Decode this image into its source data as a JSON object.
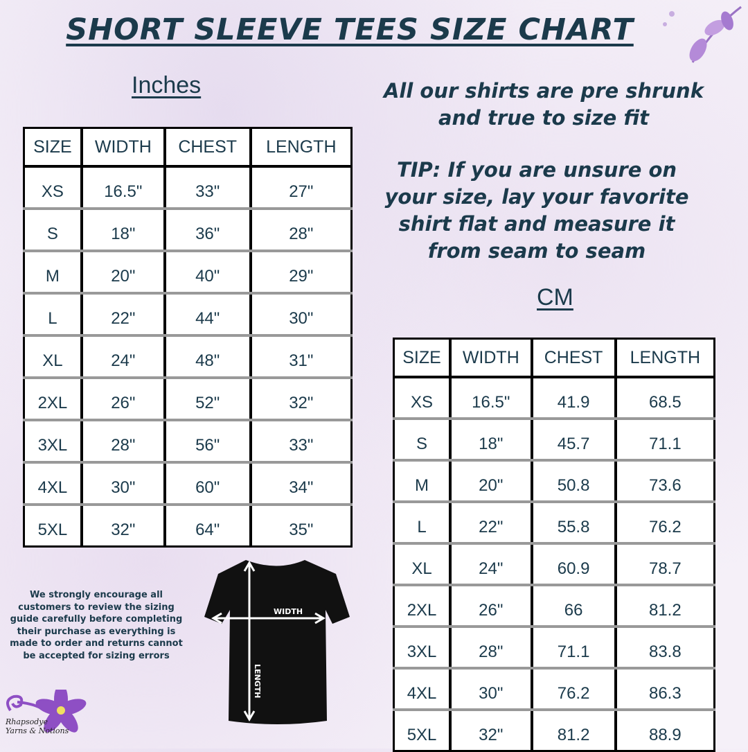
{
  "title": "SHORT SLEEVE TEES SIZE CHART",
  "inches": {
    "label": "Inches",
    "headers": [
      "SIZE",
      "WIDTH",
      "CHEST",
      "LENGTH"
    ],
    "rows": [
      [
        "XS",
        "16.5\"",
        "33\"",
        "27\""
      ],
      [
        "S",
        "18\"",
        "36\"",
        "28\""
      ],
      [
        "M",
        "20\"",
        "40\"",
        "29\""
      ],
      [
        "L",
        "22\"",
        "44\"",
        "30\""
      ],
      [
        "XL",
        "24\"",
        "48\"",
        "31\""
      ],
      [
        "2XL",
        "26\"",
        "52\"",
        "32\""
      ],
      [
        "3XL",
        "28\"",
        "56\"",
        "33\""
      ],
      [
        "4XL",
        "30\"",
        "60\"",
        "34\""
      ],
      [
        "5XL",
        "32\"",
        "64\"",
        "35\""
      ]
    ]
  },
  "cm": {
    "label": "CM",
    "headers": [
      "SIZE",
      "WIDTH",
      "CHEST",
      "LENGTH"
    ],
    "rows": [
      [
        "XS",
        "16.5\"",
        "41.9",
        "68.5"
      ],
      [
        "S",
        "18\"",
        "45.7",
        "71.1"
      ],
      [
        "M",
        "20\"",
        "50.8",
        "73.6"
      ],
      [
        "L",
        "22\"",
        "55.8",
        "76.2"
      ],
      [
        "XL",
        "24\"",
        "60.9",
        "78.7"
      ],
      [
        "2XL",
        "26\"",
        "66",
        "81.2"
      ],
      [
        "3XL",
        "28\"",
        "71.1",
        "83.8"
      ],
      [
        "4XL",
        "30\"",
        "76.2",
        "86.3"
      ],
      [
        "5XL",
        "32\"",
        "81.2",
        "88.9"
      ]
    ]
  },
  "notes": {
    "fit": "All our shirts are pre shrunk and true to size fit",
    "tip": "TIP: If you are unsure on your size, lay your favorite shirt flat and measure it from seam to seam"
  },
  "disclaimer": "We strongly encourage all customers to review the sizing guide carefully before completing their purchase as everything is made to order and returns cannot be accepted for sizing errors",
  "diagram": {
    "width_label": "WIDTH",
    "length_label": "LENGTH"
  },
  "logo": {
    "line1": "Rhapsodye",
    "line2": "Yarns & Notions"
  },
  "colors": {
    "text": "#1b3a4b",
    "accent": "#8e4fc4",
    "shirt": "#111111"
  }
}
